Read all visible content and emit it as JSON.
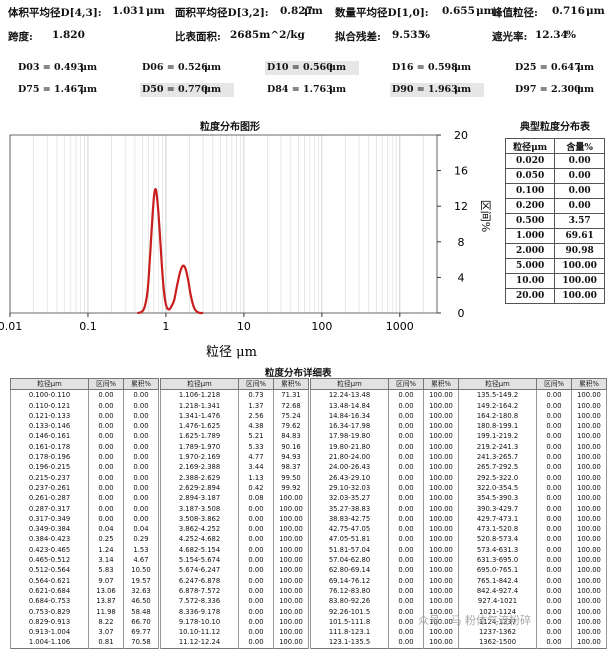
{
  "header": {
    "d43_label": "体积平均径D[4,3]:",
    "d43_value": "1.031",
    "d43_unit": "μm",
    "d32_label": "面积平均径D[3,2]:",
    "d32_value": "0.827",
    "d32_unit": "μm",
    "d10_label": "数量平均径D[1,0]:",
    "d10_value": "0.655",
    "d10_unit": "μm",
    "peak_label": "峰值粒径:",
    "peak_value": "0.716",
    "peak_unit": "μm",
    "span_label": "跨度:",
    "span_value": "1.820",
    "ssa_label": "比表面积:",
    "ssa_value": "2685m^2/kg",
    "resid_label": "拟合残差:",
    "resid_value": "9.535",
    "resid_unit": "%",
    "obsc_label": "遮光率:",
    "obsc_value": "12.34",
    "obsc_unit": "%"
  },
  "d_values": [
    {
      "k": "D03 = 0.493",
      "u": "μm"
    },
    {
      "k": "D06 = 0.526",
      "u": "μm"
    },
    {
      "k": "D10 = 0.560",
      "u": "μm"
    },
    {
      "k": "D16 = 0.598",
      "u": "μm"
    },
    {
      "k": "D25 = 0.647",
      "u": "μm"
    },
    {
      "k": "D75 = 1.467",
      "u": "μm"
    },
    {
      "k": "D50 = 0.770",
      "u": "μm"
    },
    {
      "k": "D84 = 1.763",
      "u": "μm"
    },
    {
      "k": "D90 = 1.963",
      "u": "μm"
    },
    {
      "k": "D97 = 2.300",
      "u": "μm"
    }
  ],
  "chart_data": {
    "type": "line",
    "title": "粒度分布图形",
    "xlabel": "粒径 μm",
    "ylabel": "区间%",
    "x_scale": "log",
    "xlim": [
      0.01,
      3000
    ],
    "ylim": [
      0,
      20
    ],
    "x_ticks": [
      "0.01",
      "0.1",
      "1",
      "10",
      "100",
      "1000"
    ],
    "y_ticks": [
      "0",
      "4",
      "8",
      "12",
      "16",
      "20"
    ],
    "grid": "vertical",
    "series": [
      {
        "color": "#c81e1e",
        "x": [
          0.43,
          0.48,
          0.53,
          0.58,
          0.62,
          0.66,
          0.7,
          0.73,
          0.76,
          0.8,
          0.85,
          0.9,
          0.96,
          1.02,
          1.08,
          1.13,
          1.2,
          1.28,
          1.4,
          1.52,
          1.65,
          1.78,
          1.92,
          2.05,
          2.2,
          2.35,
          2.55,
          2.75,
          3.0
        ],
        "y": [
          0,
          0.1,
          0.6,
          2.4,
          5.8,
          9.8,
          12.9,
          13.9,
          13.4,
          11.3,
          7.9,
          4.5,
          1.9,
          0.7,
          0.4,
          0.5,
          0.9,
          1.5,
          3.2,
          4.6,
          5.3,
          5.0,
          3.8,
          2.3,
          1.1,
          0.4,
          0.1,
          0,
          0
        ]
      }
    ]
  },
  "typical": {
    "title": "典型粒度分布表",
    "headers": [
      "粒径μm",
      "含量%"
    ],
    "rows": [
      [
        "0.020",
        "0.00"
      ],
      [
        "0.050",
        "0.00"
      ],
      [
        "0.100",
        "0.00"
      ],
      [
        "0.200",
        "0.00"
      ],
      [
        "0.500",
        "3.57"
      ],
      [
        "1.000",
        "69.61"
      ],
      [
        "2.000",
        "90.98"
      ],
      [
        "5.000",
        "100.00"
      ],
      [
        "10.00",
        "100.00"
      ],
      [
        "20.00",
        "100.00"
      ]
    ]
  },
  "detail": {
    "title": "粒度分布详细表",
    "headers": [
      "粒径μm",
      "区间%",
      "累积%"
    ],
    "blocks": [
      [
        [
          "0.100-0.110",
          "0.00",
          "0.00"
        ],
        [
          "0.110-0.121",
          "0.00",
          "0.00"
        ],
        [
          "0.121-0.133",
          "0.00",
          "0.00"
        ],
        [
          "0.133-0.146",
          "0.00",
          "0.00"
        ],
        [
          "0.146-0.161",
          "0.00",
          "0.00"
        ],
        [
          "0.161-0.178",
          "0.00",
          "0.00"
        ],
        [
          "0.178-0.196",
          "0.00",
          "0.00"
        ],
        [
          "0.196-0.215",
          "0.00",
          "0.00"
        ],
        [
          "0.215-0.237",
          "0.00",
          "0.00"
        ],
        [
          "0.237-0.261",
          "0.00",
          "0.00"
        ],
        [
          "0.261-0.287",
          "0.00",
          "0.00"
        ],
        [
          "0.287-0.317",
          "0.00",
          "0.00"
        ],
        [
          "0.317-0.349",
          "0.00",
          "0.00"
        ],
        [
          "0.349-0.384",
          "0.04",
          "0.04"
        ],
        [
          "0.384-0.423",
          "0.25",
          "0.29"
        ],
        [
          "0.423-0.465",
          "1.24",
          "1.53"
        ],
        [
          "0.465-0.512",
          "3.14",
          "4.67"
        ],
        [
          "0.512-0.564",
          "5.83",
          "10.50"
        ],
        [
          "0.564-0.621",
          "9.07",
          "19.57"
        ],
        [
          "0.621-0.684",
          "13.06",
          "32.63"
        ],
        [
          "0.684-0.753",
          "13.87",
          "46.50"
        ],
        [
          "0.753-0.829",
          "11.98",
          "58.48"
        ],
        [
          "0.829-0.913",
          "8.22",
          "66.70"
        ],
        [
          "0.913-1.004",
          "3.07",
          "69.77"
        ],
        [
          "1.004-1.106",
          "0.81",
          "70.58"
        ]
      ],
      [
        [
          "1.106-1.218",
          "0.73",
          "71.31"
        ],
        [
          "1.218-1.341",
          "1.37",
          "72.68"
        ],
        [
          "1.341-1.476",
          "2.56",
          "75.24"
        ],
        [
          "1.476-1.625",
          "4.38",
          "79.62"
        ],
        [
          "1.625-1.789",
          "5.21",
          "84.83"
        ],
        [
          "1.789-1.970",
          "5.33",
          "90.16"
        ],
        [
          "1.970-2.169",
          "4.77",
          "94.93"
        ],
        [
          "2.169-2.388",
          "3.44",
          "98.37"
        ],
        [
          "2.388-2.629",
          "1.13",
          "99.50"
        ],
        [
          "2.629-2.894",
          "0.42",
          "99.92"
        ],
        [
          "2.894-3.187",
          "0.08",
          "100.00"
        ],
        [
          "3.187-3.508",
          "0.00",
          "100.00"
        ],
        [
          "3.508-3.862",
          "0.00",
          "100.00"
        ],
        [
          "3.862-4.252",
          "0.00",
          "100.00"
        ],
        [
          "4.252-4.682",
          "0.00",
          "100.00"
        ],
        [
          "4.682-5.154",
          "0.00",
          "100.00"
        ],
        [
          "5.154-5.674",
          "0.00",
          "100.00"
        ],
        [
          "5.674-6.247",
          "0.00",
          "100.00"
        ],
        [
          "6.247-6.878",
          "0.00",
          "100.00"
        ],
        [
          "6.878-7.572",
          "0.00",
          "100.00"
        ],
        [
          "7.572-8.336",
          "0.00",
          "100.00"
        ],
        [
          "8.336-9.178",
          "0.00",
          "100.00"
        ],
        [
          "9.178-10.10",
          "0.00",
          "100.00"
        ],
        [
          "10.10-11.12",
          "0.00",
          "100.00"
        ],
        [
          "11.12-12.24",
          "0.00",
          "100.00"
        ]
      ],
      [
        [
          "12.24-13.48",
          "0.00",
          "100.00"
        ],
        [
          "13.48-14.84",
          "0.00",
          "100.00"
        ],
        [
          "14.84-16.34",
          "0.00",
          "100.00"
        ],
        [
          "16.34-17.98",
          "0.00",
          "100.00"
        ],
        [
          "17.98-19.80",
          "0.00",
          "100.00"
        ],
        [
          "19.80-21.80",
          "0.00",
          "100.00"
        ],
        [
          "21.80-24.00",
          "0.00",
          "100.00"
        ],
        [
          "24.00-26.43",
          "0.00",
          "100.00"
        ],
        [
          "26.43-29.10",
          "0.00",
          "100.00"
        ],
        [
          "29.10-32.03",
          "0.00",
          "100.00"
        ],
        [
          "32.03-35.27",
          "0.00",
          "100.00"
        ],
        [
          "35.27-38.83",
          "0.00",
          "100.00"
        ],
        [
          "38.83-42.75",
          "0.00",
          "100.00"
        ],
        [
          "42.75-47.05",
          "0.00",
          "100.00"
        ],
        [
          "47.05-51.81",
          "0.00",
          "100.00"
        ],
        [
          "51.81-57.04",
          "0.00",
          "100.00"
        ],
        [
          "57.04-62.80",
          "0.00",
          "100.00"
        ],
        [
          "62.80-69.14",
          "0.00",
          "100.00"
        ],
        [
          "69.14-76.12",
          "0.00",
          "100.00"
        ],
        [
          "76.12-83.80",
          "0.00",
          "100.00"
        ],
        [
          "83.80-92.26",
          "0.00",
          "100.00"
        ],
        [
          "92.26-101.5",
          "0.00",
          "100.00"
        ],
        [
          "101.5-111.8",
          "0.00",
          "100.00"
        ],
        [
          "111.8-123.1",
          "0.00",
          "100.00"
        ],
        [
          "123.1-135.5",
          "0.00",
          "100.00"
        ]
      ],
      [
        [
          "135.5-149.2",
          "0.00",
          "100.00"
        ],
        [
          "149.2-164.2",
          "0.00",
          "100.00"
        ],
        [
          "164.2-180.8",
          "0.00",
          "100.00"
        ],
        [
          "180.8-199.1",
          "0.00",
          "100.00"
        ],
        [
          "199.1-219.2",
          "0.00",
          "100.00"
        ],
        [
          "219.2-241.3",
          "0.00",
          "100.00"
        ],
        [
          "241.3-265.7",
          "0.00",
          "100.00"
        ],
        [
          "265.7-292.5",
          "0.00",
          "100.00"
        ],
        [
          "292.5-322.0",
          "0.00",
          "100.00"
        ],
        [
          "322.0-354.5",
          "0.00",
          "100.00"
        ],
        [
          "354.5-390.3",
          "0.00",
          "100.00"
        ],
        [
          "390.3-429.7",
          "0.00",
          "100.00"
        ],
        [
          "429.7-473.1",
          "0.00",
          "100.00"
        ],
        [
          "473.1-520.8",
          "0.00",
          "100.00"
        ],
        [
          "520.8-573.4",
          "0.00",
          "100.00"
        ],
        [
          "573.4-631.3",
          "0.00",
          "100.00"
        ],
        [
          "631.3-695.0",
          "0.00",
          "100.00"
        ],
        [
          "695.0-765.1",
          "0.00",
          "100.00"
        ],
        [
          "765.1-842.4",
          "0.00",
          "100.00"
        ],
        [
          "842.4-927.4",
          "0.00",
          "100.00"
        ],
        [
          "927.4-1021",
          "0.00",
          "100.00"
        ],
        [
          "1021-1124",
          "0.00",
          "100.00"
        ],
        [
          "1124-1237",
          "0.00",
          "100.00"
        ],
        [
          "1237-1362",
          "0.00",
          "100.00"
        ],
        [
          "1362-1500",
          "0.00",
          "100.00"
        ]
      ]
    ]
  },
  "watermark": "众号 · 马 粉体气流粉碎"
}
